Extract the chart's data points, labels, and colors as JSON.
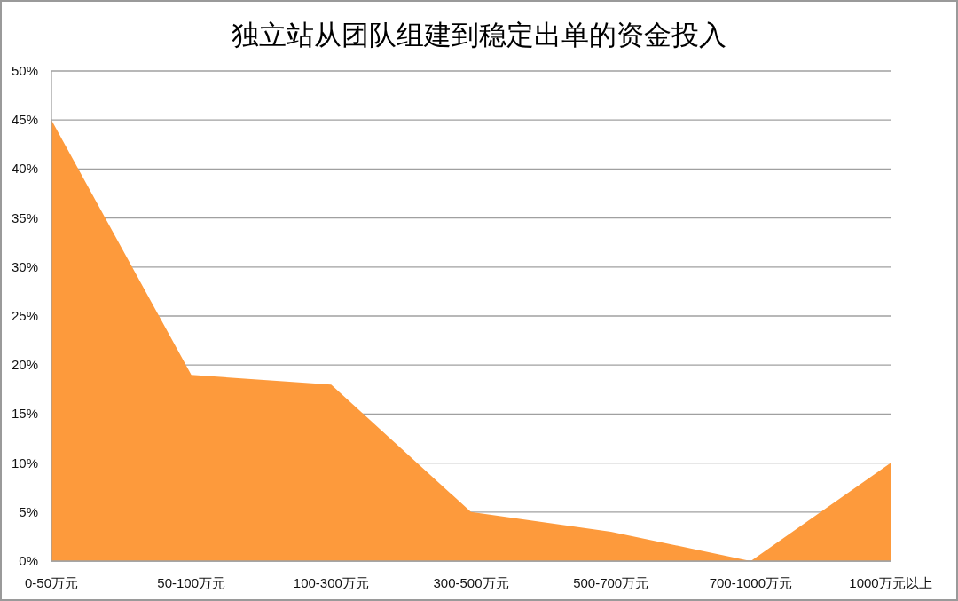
{
  "chart_data": {
    "type": "area",
    "title": "独立站从团队组建到稳定出单的资金投入",
    "categories": [
      "0-50万元",
      "50-100万元",
      "100-300万元",
      "300-500万元",
      "500-700万元",
      "700-1000万元",
      "1000万元以上"
    ],
    "values": [
      45,
      19,
      18,
      5,
      3,
      0,
      10
    ],
    "color": "#fd9a3c",
    "ylim": [
      0,
      50
    ],
    "yticks": [
      {
        "value": 0,
        "label": "0%"
      },
      {
        "value": 5,
        "label": "5%"
      },
      {
        "value": 10,
        "label": "10%"
      },
      {
        "value": 15,
        "label": "15%"
      },
      {
        "value": 20,
        "label": "20%"
      },
      {
        "value": 25,
        "label": "25%"
      },
      {
        "value": 30,
        "label": "30%"
      },
      {
        "value": 35,
        "label": "35%"
      },
      {
        "value": 40,
        "label": "40%"
      },
      {
        "value": 45,
        "label": "45%"
      },
      {
        "value": 50,
        "label": "50%"
      }
    ],
    "grid": "y"
  }
}
